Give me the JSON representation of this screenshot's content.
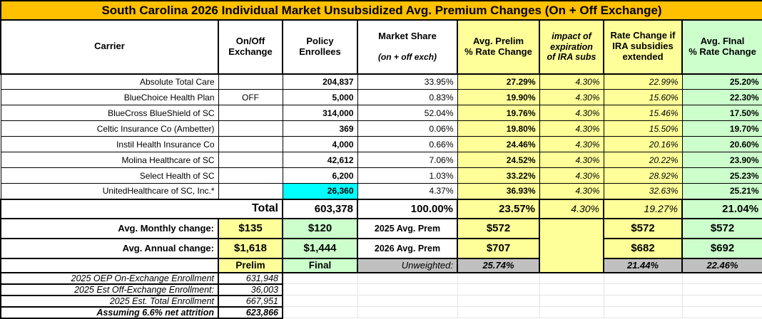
{
  "title": "South Carolina 2026 Individual Market Unsubsidized Avg. Premium Changes (On + Off Exchange)",
  "header": {
    "carrier": "Carrier",
    "on_off": "On/Off\nExchange",
    "enrollees": "Policy\nEnrollees",
    "market_share": "Market Share",
    "market_share_sub": "(on + off exch)",
    "prelim": "Avg. Prelim\n% Rate Change",
    "impact": "impact of\nexpiration\nof IRA subs",
    "ext": "Rate Change if\nIRA subsidies\nextended",
    "final": "Avg. FInal\n% Rate Change"
  },
  "rows": [
    {
      "carrier": "Absolute Total Care",
      "on_off": "",
      "enrollees": "204,837",
      "market_share": "33.95%",
      "prelim": "27.29%",
      "impact": "4.30%",
      "ext": "22.99%",
      "final": "25.20%",
      "enrollees_highlight": false
    },
    {
      "carrier": "BlueChoice Health Plan",
      "on_off": "OFF",
      "enrollees": "5,000",
      "market_share": "0.83%",
      "prelim": "19.90%",
      "impact": "4.30%",
      "ext": "15.60%",
      "final": "22.30%",
      "enrollees_highlight": false
    },
    {
      "carrier": "BlueCross BlueShield of SC",
      "on_off": "",
      "enrollees": "314,000",
      "market_share": "52.04%",
      "prelim": "19.76%",
      "impact": "4.30%",
      "ext": "15.46%",
      "final": "17.50%",
      "enrollees_highlight": false
    },
    {
      "carrier": "Celtic Insurance Co (Ambetter)",
      "on_off": "",
      "enrollees": "369",
      "market_share": "0.06%",
      "prelim": "19.80%",
      "impact": "4.30%",
      "ext": "15.50%",
      "final": "19.70%",
      "enrollees_highlight": false
    },
    {
      "carrier": "Instil Health Insurance Co",
      "on_off": "",
      "enrollees": "4,000",
      "market_share": "0.66%",
      "prelim": "24.46%",
      "impact": "4.30%",
      "ext": "20.16%",
      "final": "20.60%",
      "enrollees_highlight": false
    },
    {
      "carrier": "Molina Healthcare of SC",
      "on_off": "",
      "enrollees": "42,612",
      "market_share": "7.06%",
      "prelim": "24.52%",
      "impact": "4.30%",
      "ext": "20.22%",
      "final": "23.90%",
      "enrollees_highlight": false
    },
    {
      "carrier": "Select Health of SC",
      "on_off": "",
      "enrollees": "6,200",
      "market_share": "1.03%",
      "prelim": "33.22%",
      "impact": "4.30%",
      "ext": "28.92%",
      "final": "25.23%",
      "enrollees_highlight": false
    },
    {
      "carrier": "UnitedHealthcare of SC, Inc.*",
      "on_off": "",
      "enrollees": "26,360",
      "market_share": "4.37%",
      "prelim": "36.93%",
      "impact": "4.30%",
      "ext": "32.63%",
      "final": "25.21%",
      "enrollees_highlight": true
    }
  ],
  "total_row": {
    "label": "Total",
    "enrollees": "603,378",
    "market_share": "100.00%",
    "prelim": "23.57%",
    "impact": "4.30%",
    "ext": "19.27%",
    "final": "21.04%"
  },
  "summary": {
    "monthly": {
      "label": "Avg. Monthly change:",
      "prelim_change": "$135",
      "final_change": "$120",
      "prem_label": "2025 Avg. Prem",
      "prelim_prem": "$572",
      "ext_prem": "$572",
      "final_prem": "$572"
    },
    "annual": {
      "label": "Avg. Annual change:",
      "prelim_change": "$1,618",
      "final_change": "$1,444",
      "prem_label": "2026 Avg. Prem",
      "prelim_prem": "$707",
      "ext_prem": "$682",
      "final_prem": "$692"
    },
    "labels_row": {
      "prelim": "Prelim",
      "final": "Final",
      "unweighted_label": "Unweighted:",
      "prelim_unweighted": "25.74%",
      "ext_unweighted": "21.44%",
      "final_unweighted": "22.46%"
    }
  },
  "footer_rows": [
    {
      "label": "2025 OEP On-Exchange Enrollment",
      "value": "631,948",
      "bold": false
    },
    {
      "label": "2025 Est Off-Exchange Enrollment:",
      "value": "36,003",
      "bold": false
    },
    {
      "label": "2025 Est. Total Enrollment",
      "value": "667,951",
      "bold": false
    },
    {
      "label": "Assuming 6.6% net attrition",
      "value": "623,866",
      "bold": true
    }
  ],
  "colors": {
    "gold": "#FFC000",
    "yellow": "#FFFF99",
    "green": "#CCFFCC",
    "cyan": "#00FFFF",
    "gray": "#C0C0C0",
    "border": "#000000"
  }
}
